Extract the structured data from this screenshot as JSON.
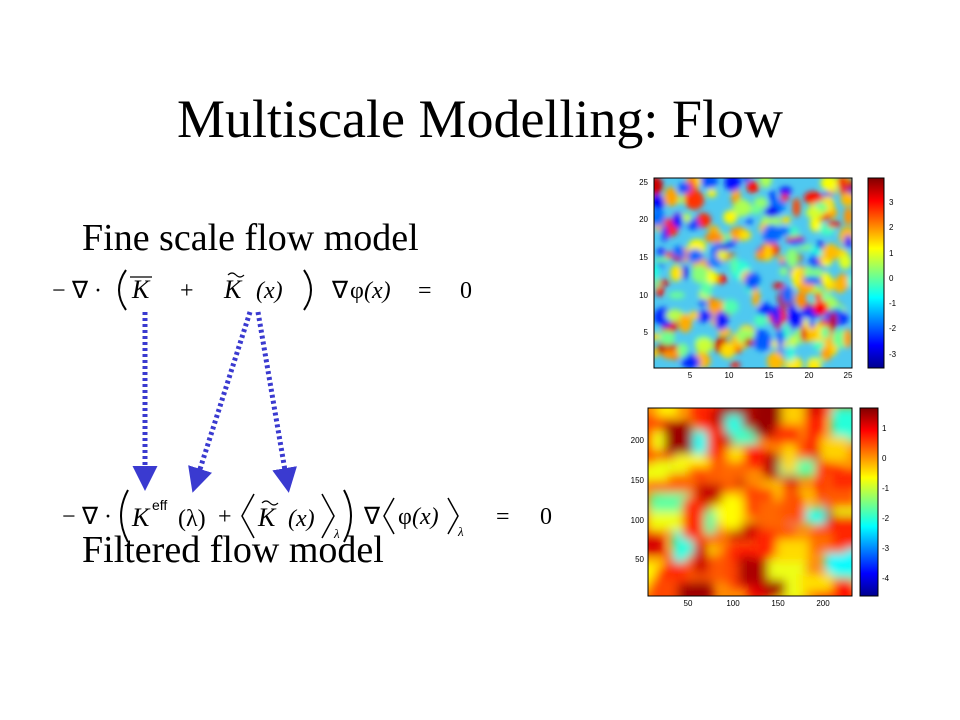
{
  "slide": {
    "title": "Multiscale Modelling: Flow",
    "bullet_fine": "Fine scale flow model",
    "bullet_filtered": "Filtered flow model"
  },
  "equation_fine": {
    "minus": "−",
    "nabla_dot": "∇ ·",
    "K": "K",
    "plus": "+",
    "K_tilde_x": "(x)",
    "grad": "∇",
    "phi": "φ",
    "phi_x": "(x)",
    "equals": "=",
    "zero": "0"
  },
  "equation_filtered": {
    "minus": "−",
    "nabla_dot": "∇ ·",
    "K": "K",
    "eff": "eff",
    "lambda_arg": "(λ)",
    "plus": "+",
    "K_tilde_x": "(x)",
    "lambda_sub": "λ",
    "grad": "∇",
    "phi": "φ",
    "phi_x": "(x)",
    "lambda_sub2": "λ",
    "equals": "=",
    "zero": "0"
  },
  "arrows": {
    "color": "#3a3ad0",
    "style": "dotted"
  },
  "map_fine": {
    "x_ticks": [
      "5",
      "10",
      "15",
      "20",
      "25"
    ],
    "y_ticks": [
      "25",
      "20",
      "15",
      "10",
      "5"
    ],
    "colorbar_ticks": [
      "3",
      "2",
      "1",
      "0",
      "-1",
      "-2",
      "-3"
    ],
    "colormap": "jet"
  },
  "map_coarse": {
    "x_ticks": [
      "50",
      "100",
      "150",
      "200"
    ],
    "y_ticks": [
      "200",
      "150",
      "100",
      "50"
    ],
    "colorbar_ticks": [
      "1",
      "0",
      "-1",
      "-2",
      "-3",
      "-4"
    ],
    "colormap": "jet"
  }
}
